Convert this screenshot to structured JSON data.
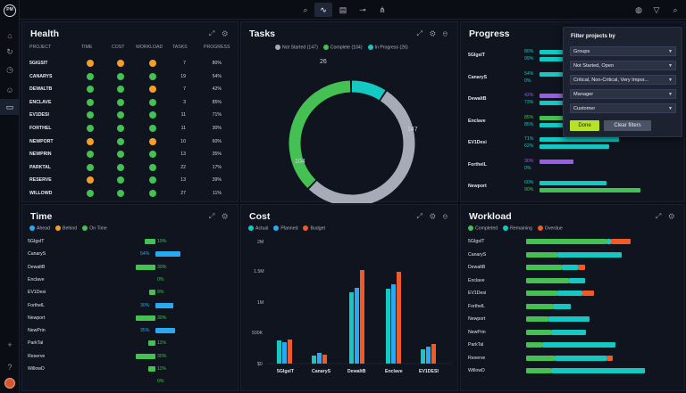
{
  "topbar": {
    "tools": [
      "zoom-icon",
      "pulse-icon",
      "clipboard-icon",
      "link-icon",
      "hierarchy-icon"
    ],
    "right_icons": [
      "help-icon",
      "filter-icon",
      "search-icon"
    ]
  },
  "rail": {
    "logo": "PM"
  },
  "health": {
    "title": "Health",
    "columns": [
      "PROJECT",
      "TIME",
      "COST",
      "WORKLOAD",
      "TASKS",
      "PROGRESS"
    ],
    "rows": [
      {
        "name": "5GIGSIT",
        "time": "orange",
        "cost": "orange",
        "workload": "orange",
        "tasks": "7",
        "progress": "80%"
      },
      {
        "name": "CANARYS",
        "time": "green",
        "cost": "green",
        "workload": "green",
        "tasks": "19",
        "progress": "54%"
      },
      {
        "name": "DEWALTB",
        "time": "green",
        "cost": "green",
        "workload": "orange",
        "tasks": "7",
        "progress": "42%"
      },
      {
        "name": "ENCLAVE",
        "time": "green",
        "cost": "green",
        "workload": "green",
        "tasks": "3",
        "progress": "85%"
      },
      {
        "name": "EV1DESI",
        "time": "green",
        "cost": "green",
        "workload": "green",
        "tasks": "11",
        "progress": "71%"
      },
      {
        "name": "FORTHEL",
        "time": "green",
        "cost": "green",
        "workload": "green",
        "tasks": "11",
        "progress": "30%"
      },
      {
        "name": "NEWPORT",
        "time": "orange",
        "cost": "green",
        "workload": "orange",
        "tasks": "10",
        "progress": "60%"
      },
      {
        "name": "NEWPRIN",
        "time": "green",
        "cost": "green",
        "workload": "green",
        "tasks": "13",
        "progress": "35%"
      },
      {
        "name": "PARKTAL",
        "time": "green",
        "cost": "green",
        "workload": "green",
        "tasks": "22",
        "progress": "17%"
      },
      {
        "name": "RESERVE",
        "time": "orange",
        "cost": "green",
        "workload": "green",
        "tasks": "13",
        "progress": "39%"
      },
      {
        "name": "WILLOWD",
        "time": "green",
        "cost": "green",
        "workload": "green",
        "tasks": "27",
        "progress": "11%"
      }
    ]
  },
  "tasks": {
    "title": "Tasks",
    "legend": [
      "Not Started (147)",
      "Complete (104)",
      "In Progress (26)"
    ],
    "labels": {
      "not_started": "147",
      "complete": "104",
      "in_progress": "26"
    }
  },
  "progress": {
    "title": "Progress",
    "rows": [
      {
        "name": "5GIgsIT",
        "a": "80%",
        "b": "99%",
        "av": 80,
        "bv": 99,
        "a_color": "teal",
        "b_color": "teal"
      },
      {
        "name": "CanaryS",
        "a": "54%",
        "b": "0%",
        "av": 54,
        "bv": 0,
        "a_color": "teal",
        "b_color": "teal"
      },
      {
        "name": "DewaltB",
        "a": "42%",
        "b": "73%",
        "av": 42,
        "bv": 73,
        "a_color": "purple",
        "b_color": "teal"
      },
      {
        "name": "Enclave",
        "a": "85%",
        "b": "85%",
        "av": 85,
        "bv": 85,
        "a_color": "green",
        "b_color": "teal"
      },
      {
        "name": "EV1Desi",
        "a": "71%",
        "b": "62%",
        "av": 71,
        "bv": 62,
        "a_color": "teal",
        "b_color": "teal"
      },
      {
        "name": "ForthelL",
        "a": "30%",
        "b": "0%",
        "av": 30,
        "bv": 0,
        "a_color": "purple",
        "b_color": "teal"
      },
      {
        "name": "Newport",
        "a": "60%",
        "b": "90%",
        "av": 60,
        "bv": 90,
        "a_color": "teal",
        "b_color": "green"
      }
    ]
  },
  "filter": {
    "title": "Filter projects by",
    "selects": [
      "Groups",
      "Not Started, Open",
      "Critical, Non-Critical, Very Impor...",
      "Manager",
      "Customer"
    ],
    "done_label": "Done",
    "clear_label": "Clear filters"
  },
  "time": {
    "title": "Time",
    "legend": [
      "Ahead",
      "Behind",
      "On Time"
    ],
    "rows": [
      {
        "name": "5GIgsIT",
        "pct": "19%",
        "green": 12,
        "blue": 0
      },
      {
        "name": "CanaryS",
        "pct": "54%",
        "green": 0,
        "blue": 28
      },
      {
        "name": "DewaltB",
        "pct": "30%",
        "green": 22,
        "blue": 0
      },
      {
        "name": "Enclave",
        "pct": "0%",
        "green": 0,
        "blue": 0
      },
      {
        "name": "EV1Desi",
        "pct": "9%",
        "green": 7,
        "blue": 0
      },
      {
        "name": "ForthelL",
        "pct": "30%",
        "green": 0,
        "blue": 20
      },
      {
        "name": "Newport",
        "pct": "30%",
        "green": 22,
        "blue": 0
      },
      {
        "name": "NewPrin",
        "pct": "35%",
        "green": 0,
        "blue": 22
      },
      {
        "name": "ParkTal",
        "pct": "11%",
        "green": 8,
        "blue": 0
      },
      {
        "name": "Reserve",
        "pct": "30%",
        "green": 22,
        "blue": 0
      },
      {
        "name": "WillowD",
        "pct": "11%",
        "green": 8,
        "blue": 0
      },
      {
        "name": "",
        "pct": "0%",
        "green": 0,
        "blue": 0
      }
    ]
  },
  "cost": {
    "title": "Cost",
    "legend": [
      "Actual",
      "Planned",
      "Budget"
    ],
    "ticks": [
      "2M",
      "1.5M",
      "1M",
      "500K",
      "$0"
    ],
    "categories": [
      "5GIgsIT",
      "CanaryS",
      "DewaltB",
      "Enclave",
      "EV1DESI"
    ]
  },
  "workload": {
    "title": "Workload",
    "legend": [
      "Completed",
      "Remaining",
      "Overdue"
    ],
    "rows": [
      {
        "name": "5GIgsIT",
        "c": 90,
        "r": 5,
        "o": 22
      },
      {
        "name": "CanaryS",
        "c": 35,
        "r": 72,
        "o": 0
      },
      {
        "name": "DewaltB",
        "c": 40,
        "r": 18,
        "o": 8
      },
      {
        "name": "Enclave",
        "c": 48,
        "r": 18,
        "o": 0
      },
      {
        "name": "EV1Desi",
        "c": 35,
        "r": 28,
        "o": 13
      },
      {
        "name": "ForthelL",
        "c": 30,
        "r": 20,
        "o": 0
      },
      {
        "name": "Newport",
        "c": 25,
        "r": 46,
        "o": 0
      },
      {
        "name": "NewPrin",
        "c": 28,
        "r": 39,
        "o": 0
      },
      {
        "name": "ParkTal",
        "c": 18,
        "r": 82,
        "o": 0
      },
      {
        "name": "Reserve",
        "c": 32,
        "r": 58,
        "o": 7
      },
      {
        "name": "WillowD",
        "c": 28,
        "r": 105,
        "o": 0
      }
    ]
  },
  "colors": {
    "green": "#44c152",
    "orange": "#f59e28",
    "teal": "#13c9c1",
    "purple": "#9b5de5",
    "blue": "#2aa8f2",
    "red": "#f05a28",
    "gray": "#a7abb8"
  }
}
